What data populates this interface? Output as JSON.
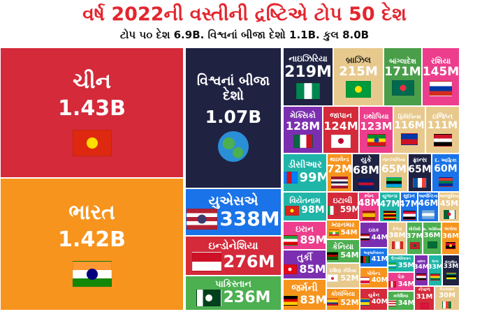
{
  "header": {
    "title": "વર્ષ 2022ની વસ્તીની દ્રષ્ટિએ ટોપ 50 દેશ",
    "subtitle": "ટોપ ૫૦ દેશ 6.9B. વિશ્વનાં બીજા દેશો 1.1B. કુલ 8.0B"
  },
  "countries": [
    {
      "id": "china",
      "name": "ચીન",
      "value": "1.43B",
      "color": "#d42a3a",
      "flag": {
        "icon": "china-flag-icon",
        "stripes": [
          "#de2910"
        ],
        "dir": "h",
        "dot": "#ffde00"
      }
    },
    {
      "id": "india",
      "name": "ભારત",
      "value": "1.42B",
      "color": "#f7941d",
      "flag": {
        "icon": "india-flag-icon",
        "stripes": [
          "#ff9933",
          "#ffffff",
          "#138808"
        ],
        "dir": "h",
        "dot": "#000080"
      }
    },
    {
      "id": "world",
      "name": "વિશ્વનાં બીજા દેશો",
      "value": "1.07B",
      "color": "#1f2241",
      "flag": {
        "icon": "globe-icon",
        "globe": true
      }
    },
    {
      "id": "usa",
      "name": "યુએસએ",
      "value": "338M",
      "color": "#1a73e8",
      "flag": {
        "icon": "usa-flag-icon",
        "stripes": [
          "#b22234",
          "#ffffff",
          "#b22234",
          "#ffffff",
          "#b22234"
        ],
        "dir": "h",
        "dot": "#3c3b6e"
      }
    },
    {
      "id": "indonesia",
      "name": "ઇન્ડોનેશિયા",
      "value": "276M",
      "color": "#d42a3a",
      "flag": {
        "icon": "indonesia-flag-icon",
        "stripes": [
          "#ce1126",
          "#ffffff"
        ],
        "dir": "h"
      }
    },
    {
      "id": "pakistan",
      "name": "પાકિસ્તાન",
      "value": "236M",
      "color": "#4caf50",
      "flag": {
        "icon": "pakistan-flag-icon",
        "stripes": [
          "#ffffff",
          "#01411c",
          "#01411c",
          "#01411c"
        ],
        "dir": "v",
        "dot": "#ffffff"
      }
    },
    {
      "id": "nigeria",
      "name": "નાઇઝિરિયા",
      "value": "219M",
      "color": "#1f2241",
      "flag": {
        "icon": "nigeria-flag-icon",
        "stripes": [
          "#008751",
          "#ffffff",
          "#008751"
        ],
        "dir": "v"
      }
    },
    {
      "id": "brazil",
      "name": "બ્રાઝિલ",
      "value": "215M",
      "color": "#e8c98d",
      "dark": true,
      "flag": {
        "icon": "brazil-flag-icon",
        "stripes": [
          "#009c3b"
        ],
        "dir": "h",
        "dot": "#ffdf00"
      }
    },
    {
      "id": "bangladesh",
      "name": "બાંગ્લાદેશ",
      "value": "171M",
      "color": "#4a9e4a",
      "flag": {
        "icon": "bangladesh-flag-icon",
        "stripes": [
          "#006a4e"
        ],
        "dir": "h",
        "dot": "#f42a41"
      }
    },
    {
      "id": "russia",
      "name": "રશિયા",
      "value": "145M",
      "color": "#ec3e8c",
      "flag": {
        "icon": "russia-flag-icon",
        "stripes": [
          "#ffffff",
          "#0039a6",
          "#d52b1e"
        ],
        "dir": "h"
      }
    },
    {
      "id": "mexico",
      "name": "મેક્સિકો",
      "value": "128M",
      "color": "#7b2fb0",
      "flag": {
        "icon": "mexico-flag-icon",
        "stripes": [
          "#006847",
          "#ffffff",
          "#ce1126"
        ],
        "dir": "v"
      }
    },
    {
      "id": "japan",
      "name": "જાપાન",
      "value": "124M",
      "color": "#d42a3a",
      "flag": {
        "icon": "japan-flag-icon",
        "stripes": [
          "#ffffff"
        ],
        "dir": "h",
        "dot": "#bc002d"
      }
    },
    {
      "id": "ethiopia",
      "name": "ઇથોપિયા",
      "value": "123M",
      "color": "#ec3e8c",
      "flag": {
        "icon": "ethiopia-flag-icon",
        "stripes": [
          "#078930",
          "#fcdd09",
          "#da121a"
        ],
        "dir": "h",
        "dot": "#0f47af"
      }
    },
    {
      "id": "philippines",
      "name": "ફિલિપિન્સ",
      "value": "116M",
      "color": "#e8c98d",
      "flag": {
        "icon": "philippines-flag-icon",
        "stripes": [
          "#0038a8",
          "#ce1126"
        ],
        "dir": "h"
      }
    },
    {
      "id": "egypt",
      "name": "ઇજિપ્ત",
      "value": "111M",
      "color": "#e8c98d",
      "flag": {
        "icon": "egypt-flag-icon",
        "stripes": [
          "#ce1126",
          "#ffffff",
          "#000000"
        ],
        "dir": "h"
      }
    },
    {
      "id": "drc",
      "name": "ડીસીઆર",
      "value": "99M",
      "color": "#1fb5a8",
      "flag": {
        "icon": "drc-flag-icon",
        "stripes": [
          "#007fff",
          "#ce1021",
          "#007fff"
        ],
        "dir": "v"
      }
    },
    {
      "id": "thailand",
      "name": "થાઇલેન્ડ",
      "value": "72M",
      "color": "#f7941d",
      "flag": {
        "icon": "thailand-flag-icon",
        "stripes": [
          "#a51931",
          "#f4f5f8",
          "#2d2a4a",
          "#f4f5f8",
          "#a51931"
        ],
        "dir": "h"
      }
    },
    {
      "id": "uk",
      "name": "યુકે",
      "value": "68M",
      "color": "#1f2241",
      "flag": {
        "icon": "uk-flag-icon",
        "stripes": [
          "#012169",
          "#c8102e",
          "#012169"
        ],
        "dir": "h"
      }
    },
    {
      "id": "tanzania",
      "name": "તાન્ઝાનિયા",
      "value": "65M",
      "color": "#e8c98d",
      "flag": {
        "icon": "tanzania-flag-icon",
        "stripes": [
          "#1eb53a",
          "#000000",
          "#00a3dd"
        ],
        "dir": "h"
      }
    },
    {
      "id": "france",
      "name": "ફ્રાન્સ",
      "value": "65M",
      "color": "#1f2241",
      "flag": {
        "icon": "france-flag-icon",
        "stripes": [
          "#0055a4",
          "#ffffff",
          "#ef4135"
        ],
        "dir": "v"
      }
    },
    {
      "id": "south-africa",
      "name": "દ. આફ્રિકા",
      "value": "60M",
      "color": "#1a73e8",
      "flag": {
        "icon": "south-africa-flag-icon",
        "stripes": [
          "#de3831",
          "#007a4d",
          "#002395"
        ],
        "dir": "h"
      }
    },
    {
      "id": "vietnam",
      "name": "વિયેતનામ",
      "value": "98M",
      "color": "#1fb5a8",
      "flag": {
        "icon": "vietnam-flag-icon",
        "stripes": [
          "#da251d"
        ],
        "dir": "h",
        "dot": "#ffff00"
      }
    },
    {
      "id": "italy",
      "name": "ઇટાલી",
      "value": "59M",
      "color": "#d42a3a",
      "flag": {
        "icon": "italy-flag-icon",
        "stripes": [
          "#009246",
          "#ffffff",
          "#ce2b37"
        ],
        "dir": "v"
      }
    },
    {
      "id": "spain",
      "name": "સ્પેન",
      "value": "48M",
      "color": "#ec3e8c",
      "flag": {
        "icon": "spain-flag-icon",
        "stripes": [
          "#aa151b",
          "#f1bf00",
          "#f1bf00",
          "#aa151b"
        ],
        "dir": "h"
      }
    },
    {
      "id": "uganda",
      "name": "યુગાન્ડા",
      "value": "47M",
      "color": "#1fb5a8",
      "flag": {
        "icon": "uganda-flag-icon",
        "stripes": [
          "#000000",
          "#fcdc04",
          "#d90000",
          "#000000",
          "#fcdc04",
          "#d90000"
        ],
        "dir": "h"
      }
    },
    {
      "id": "sudan",
      "name": "સુદાન",
      "value": "47M",
      "color": "#1a73e8",
      "flag": {
        "icon": "sudan-flag-icon",
        "stripes": [
          "#d21034",
          "#ffffff",
          "#000000"
        ],
        "dir": "h"
      }
    },
    {
      "id": "argentina",
      "name": "આર્જેન્ટિના",
      "value": "46M",
      "color": "#1a73e8",
      "flag": {
        "icon": "argentina-flag-icon",
        "stripes": [
          "#74acdf",
          "#ffffff",
          "#74acdf"
        ],
        "dir": "h"
      }
    },
    {
      "id": "algeria",
      "name": "અલ્જીરિયા",
      "value": "45M",
      "color": "#e8c98d",
      "flag": {
        "icon": "algeria-flag-icon",
        "stripes": [
          "#006233",
          "#ffffff"
        ],
        "dir": "v",
        "dot": "#d21034"
      }
    },
    {
      "id": "iran",
      "name": "ઇરાન",
      "value": "89M",
      "color": "#ec3e8c",
      "flag": {
        "icon": "iran-flag-icon",
        "stripes": [
          "#239f40",
          "#ffffff",
          "#da0000"
        ],
        "dir": "h"
      }
    },
    {
      "id": "turkey",
      "name": "તુર્કી",
      "value": "85M",
      "color": "#7b2fb0",
      "flag": {
        "icon": "turkey-flag-icon",
        "stripes": [
          "#e30a17"
        ],
        "dir": "h",
        "dot": "#ffffff"
      }
    },
    {
      "id": "germany",
      "name": "જર્મની",
      "value": "83M",
      "color": "#f7941d",
      "flag": {
        "icon": "germany-flag-icon",
        "stripes": [
          "#000000",
          "#dd0000",
          "#ffce00"
        ],
        "dir": "h"
      }
    },
    {
      "id": "myanmar",
      "name": "મ્યાનમાર",
      "value": "54M",
      "color": "#f7941d",
      "flag": {
        "icon": "myanmar-flag-icon",
        "stripes": [
          "#fecb00",
          "#34b233",
          "#ea2839"
        ],
        "dir": "h",
        "dot": "#ffffff"
      }
    },
    {
      "id": "kenya",
      "name": "કેનિયા",
      "value": "54M",
      "color": "#4caf50",
      "flag": {
        "icon": "kenya-flag-icon",
        "stripes": [
          "#000000",
          "#bb0000",
          "#006600"
        ],
        "dir": "h"
      }
    },
    {
      "id": "south-korea",
      "name": "દક્ષિણ કોરિયા",
      "value": "52M",
      "color": "#e8c98d",
      "flag": {
        "icon": "south-korea-flag-icon",
        "stripes": [
          "#ffffff"
        ],
        "dir": "h",
        "dot": "#cd2e3a"
      }
    },
    {
      "id": "colombia",
      "name": "કોલંબિયા",
      "value": "52M",
      "color": "#f7941d",
      "flag": {
        "icon": "colombia-flag-icon",
        "stripes": [
          "#fcd116",
          "#fcd116",
          "#003893",
          "#ce1126"
        ],
        "dir": "h"
      }
    },
    {
      "id": "iraq",
      "name": "ઇરાક",
      "value": "44M",
      "color": "#7b2fb0",
      "flag": {
        "icon": "iraq-flag-icon",
        "stripes": [
          "#ce1126",
          "#ffffff",
          "#000000"
        ],
        "dir": "h"
      }
    },
    {
      "id": "afghanistan",
      "name": "અફઘાનિસ્તાન",
      "value": "41M",
      "color": "#1a73e8",
      "flag": {
        "icon": "afghanistan-flag-icon",
        "stripes": [
          "#000000",
          "#d32011",
          "#007a36"
        ],
        "dir": "v"
      }
    },
    {
      "id": "poland",
      "name": "પોલેન્ડ",
      "value": "40M",
      "color": "#f7941d",
      "flag": {
        "icon": "poland-flag-icon",
        "stripes": [
          "#ffffff",
          "#dc143c"
        ],
        "dir": "h"
      }
    },
    {
      "id": "ukraine",
      "name": "યુક્રેન",
      "value": "40M",
      "color": "#d42a3a",
      "flag": {
        "icon": "ukraine-flag-icon",
        "stripes": [
          "#0057b7",
          "#ffd700"
        ],
        "dir": "h"
      }
    },
    {
      "id": "canada",
      "name": "કેનેડા",
      "value": "38M",
      "color": "#e8c98d",
      "flag": {
        "icon": "canada-flag-icon",
        "stripes": [
          "#d52b1e",
          "#ffffff",
          "#ffffff",
          "#d52b1e"
        ],
        "dir": "v"
      }
    },
    {
      "id": "morocco",
      "name": "મોરોક્કો",
      "value": "37M",
      "color": "#4caf50",
      "flag": {
        "icon": "morocco-flag-icon",
        "stripes": [
          "#c1272d"
        ],
        "dir": "h",
        "dot": "#006233"
      }
    },
    {
      "id": "saudi-arabia",
      "name": "સ. અરેબિયા",
      "value": "36M",
      "color": "#4caf50",
      "flag": {
        "icon": "saudi-arabia-flag-icon",
        "stripes": [
          "#006c35"
        ],
        "dir": "h"
      }
    },
    {
      "id": "angola",
      "name": "અંગોલા",
      "value": "36M",
      "color": "#f7941d",
      "flag": {
        "icon": "angola-flag-icon",
        "stripes": [
          "#cc092f",
          "#000000"
        ],
        "dir": "h",
        "dot": "#ffcb00"
      }
    },
    {
      "id": "uzbekistan",
      "name": "ઉઝબેકિસ્તાન",
      "value": "35M",
      "color": "#1fb5a8",
      "flag": {
        "icon": "uzbekistan-flag-icon",
        "stripes": [
          "#1eb53a",
          "#ffffff",
          "#0099b5"
        ],
        "dir": "h"
      }
    },
    {
      "id": "peru",
      "name": "પેરુ",
      "value": "34M",
      "color": "#ec3e8c",
      "flag": {
        "icon": "peru-flag-icon",
        "stripes": [
          "#d91023",
          "#ffffff",
          "#d91023"
        ],
        "dir": "v"
      }
    },
    {
      "id": "malaysia",
      "name": "મલેશિયા",
      "value": "34M",
      "color": "#4caf50",
      "flag": {
        "icon": "malaysia-flag-icon",
        "stripes": [
          "#cc0001",
          "#ffffff",
          "#cc0001",
          "#ffffff"
        ],
        "dir": "h"
      }
    },
    {
      "id": "yemen",
      "name": "યમન",
      "value": "34M",
      "color": "#7b2fb0",
      "flag": {
        "icon": "yemen-flag-icon",
        "stripes": [
          "#ce1126",
          "#ffffff",
          "#000000"
        ],
        "dir": "h"
      }
    },
    {
      "id": "ghana",
      "name": "ઘાના",
      "value": "33M",
      "color": "#1fb5a8",
      "flag": {
        "icon": "ghana-flag-icon",
        "stripes": [
          "#ce1126",
          "#fcd116",
          "#006b3f"
        ],
        "dir": "h"
      }
    },
    {
      "id": "mozambique",
      "name": "મોઝામ્બિક",
      "value": "33M",
      "color": "#1f2241",
      "flag": {
        "icon": "mozambique-flag-icon",
        "stripes": [
          "#007168",
          "#000000",
          "#fce100"
        ],
        "dir": "h"
      }
    },
    {
      "id": "nepal",
      "name": "નેપાળ",
      "value": "31M",
      "color": "#d42a3a",
      "flag": {
        "icon": "nepal-flag-icon",
        "stripes": [
          "#dc143c"
        ],
        "dir": "h"
      }
    },
    {
      "id": "madagascar",
      "name": "મેડાગાસ્કર",
      "value": "30M",
      "color": "#e8c98d",
      "flag": {
        "icon": "madagascar-flag-icon",
        "stripes": [
          "#ffffff",
          "#fc3d32",
          "#007e3a"
        ],
        "dir": "v"
      }
    }
  ]
}
